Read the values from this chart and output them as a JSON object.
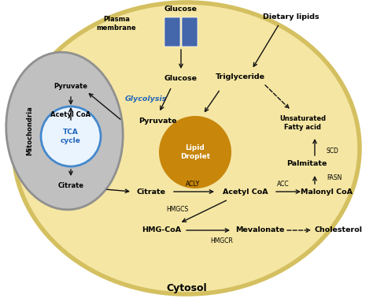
{
  "bg_color": "#FFFFFF",
  "cell_face": "#F5E6A3",
  "cell_edge": "#D4C060",
  "cell_lw": 4,
  "mito_face": "#C0C0C0",
  "mito_edge": "#909090",
  "mito_lw": 2,
  "tca_face": "#EAF4FF",
  "tca_edge": "#4488CC",
  "tca_lw": 2,
  "tca_text_color": "#2266BB",
  "ld_face": "#C8860A",
  "trans_face": "#4466AA",
  "blue_label": "#2266BB",
  "black": "#111111",
  "gray_text": "#333333",
  "cytosol_label": "Cytosol",
  "labels": {
    "glucose_top": "Glucose",
    "plasma_membrane": "Plasma\nmembrane",
    "dietary_lipids": "Dietary lipids",
    "glucose_inside": "Glucose",
    "glycolysis": "Glycolysis",
    "triglyceride": "Triglyceride",
    "pyruvate_outside": "Pyruvate",
    "pyruvate_mito": "Pyruvate",
    "acetyl_coa_mito": "Acetyl CoA",
    "tca": "TCA\ncycle",
    "citrate_mito": "Citrate",
    "mitochondria": "Mitochondria",
    "lipid_droplet": "Lipid\nDroplet",
    "citrate_cyto": "Citrate",
    "acetyl_coa_cyto": "Acetyl CoA",
    "malonyl_coa": "Malonyl CoA",
    "palmitate": "Palmitate",
    "unsaturated_fa": "Unsaturated\nFatty acid",
    "hmg_coa": "HMG-CoA",
    "mevalonate": "Mevalonate",
    "cholesterol": "Cholesterol",
    "acly": "ACLY",
    "acc": "ACC",
    "fasn": "FASN",
    "scd": "SCD",
    "hmgcs": "HMGCS",
    "hmgcr": "HMGCR"
  }
}
